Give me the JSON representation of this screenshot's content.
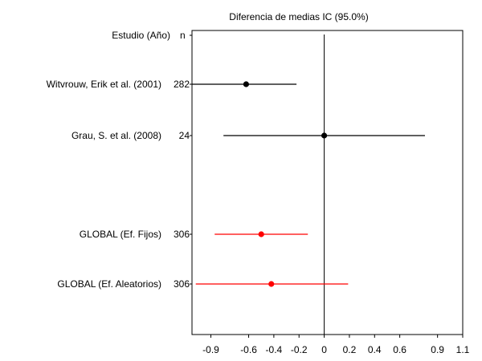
{
  "chart_data": {
    "type": "forest",
    "title": "Diferencia de medias IC  (95.0%)",
    "header": {
      "study_label": "Estudio  (Año)",
      "n_label": "n"
    },
    "xlim": [
      -1.05,
      1.1
    ],
    "x_ticks": [
      -0.9,
      -0.6,
      -0.4,
      -0.2,
      0,
      0.2,
      0.4,
      0.6,
      0.9,
      1.1
    ],
    "x_tick_labels": [
      "-0.9",
      "-0.6",
      "-0.4",
      "-0.2",
      "0",
      "0.2",
      "0.4",
      "0.6",
      "0.9",
      "1.1"
    ],
    "reference_line": 0,
    "rows": [
      {
        "label": "Witvrouw, Erik et al.  (2001)",
        "n": "282",
        "estimate": -0.62,
        "ci_low": -1.05,
        "ci_high": -0.22,
        "color": "#000000"
      },
      {
        "label": "Grau, S. et al.  (2008)",
        "n": "24",
        "estimate": 0.0,
        "ci_low": -0.8,
        "ci_high": 0.8,
        "color": "#000000"
      },
      {
        "label": "GLOBAL (Ef. Fijos)",
        "n": "306",
        "estimate": -0.5,
        "ci_low": -0.87,
        "ci_high": -0.13,
        "color": "#ff0000"
      },
      {
        "label": "GLOBAL (Ef. Aleatorios)",
        "n": "306",
        "estimate": -0.42,
        "ci_low": -1.02,
        "ci_high": 0.19,
        "color": "#ff0000"
      }
    ]
  }
}
